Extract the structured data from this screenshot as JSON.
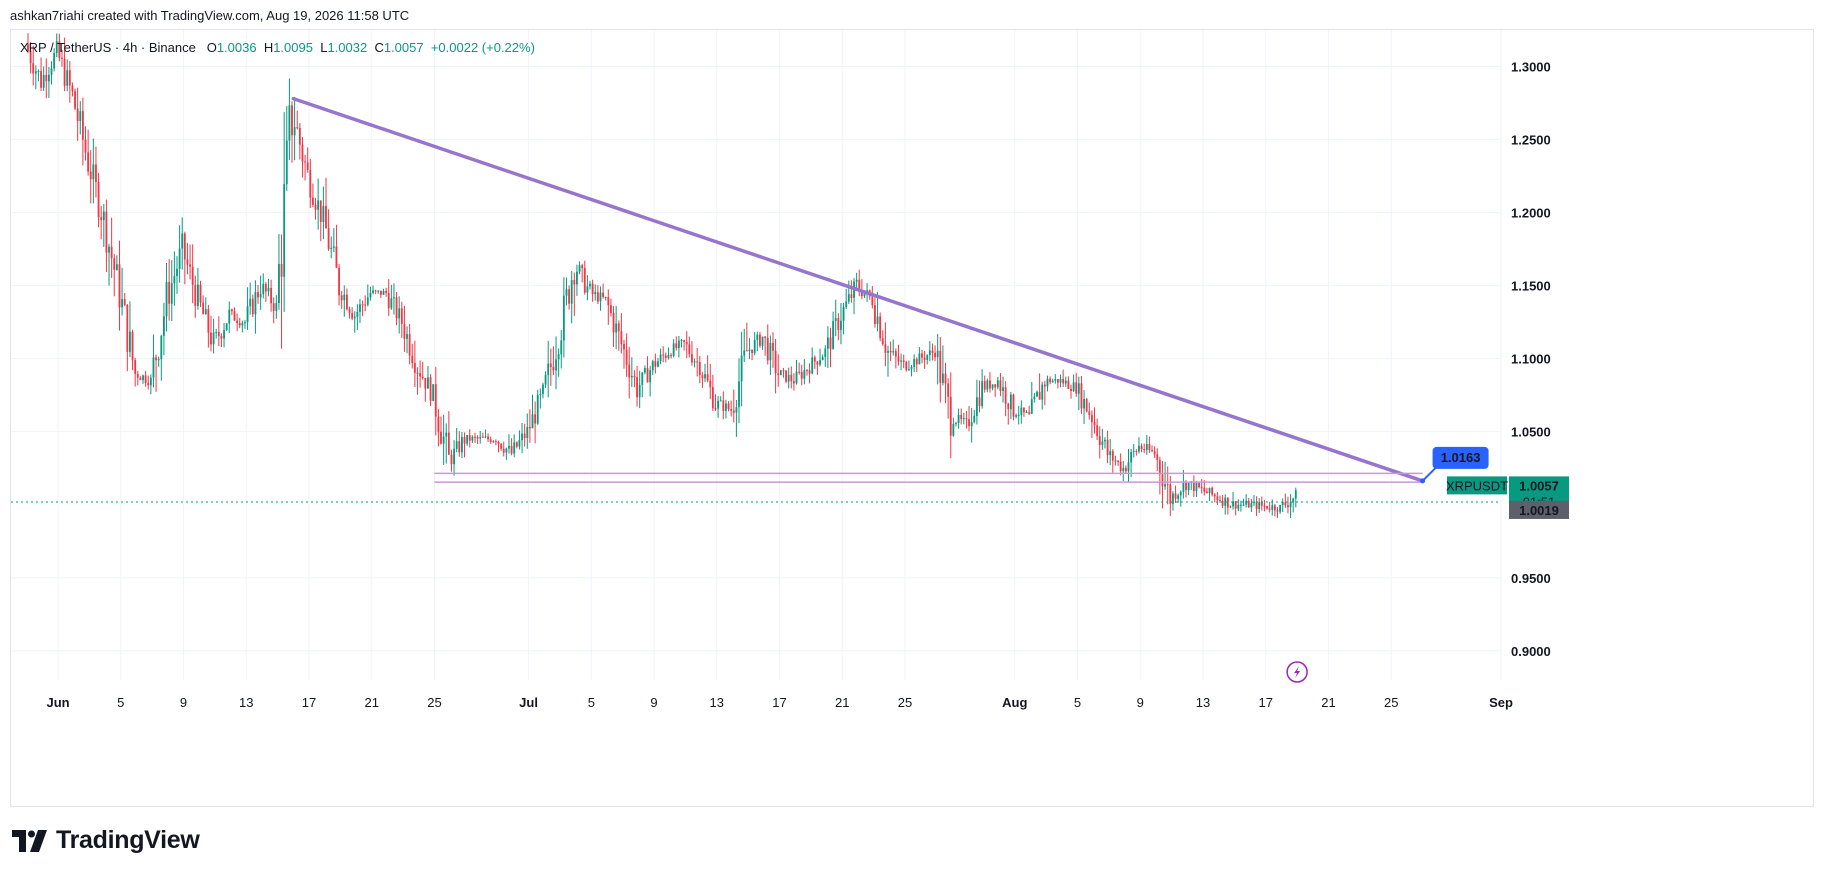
{
  "header": {
    "text": "ashkan7riahi created with TradingView.com, Aug 19, 2026 11:58 UTC"
  },
  "symbol_bar": {
    "symbol": "XRP / TetherUS · 4h · Binance",
    "o_label": "O",
    "o_value": "1.0036",
    "h_label": "H",
    "h_value": "1.0095",
    "l_label": "L",
    "l_value": "1.0032",
    "c_label": "C",
    "c_value": "1.0057",
    "change": "+0.0022 (+0.22%)"
  },
  "price_axis": {
    "ticks": [
      "1.3000",
      "1.2500",
      "1.2000",
      "1.1500",
      "1.1000",
      "1.0500",
      "0.9500",
      "0.9000"
    ],
    "last_price_symbol": "XRPUSDT",
    "last_price": "1.0057",
    "countdown": "01:51",
    "line_price": "1.0019"
  },
  "time_axis": {
    "labels": [
      "Jun",
      "5",
      "9",
      "13",
      "17",
      "21",
      "25",
      "Jul",
      "5",
      "9",
      "13",
      "17",
      "21",
      "25",
      "Aug",
      "5",
      "9",
      "13",
      "17",
      "21",
      "25",
      "Sep"
    ]
  },
  "drawings": {
    "trendline_label": "1.0163",
    "trendline_color": "#9575cd",
    "support_color": "#ce93d8"
  },
  "colors": {
    "up": "#089981",
    "down": "#f23645",
    "grid": "#f0f3fa",
    "text": "#131722",
    "dotted_line": "#089981"
  },
  "footer": {
    "brand": "TradingView",
    "logo_icon": "tradingview-logo-icon"
  },
  "chart_data": {
    "type": "candlestick",
    "title": "XRP / TetherUS · 4h · Binance",
    "xlabel": "",
    "ylabel": "",
    "x_range": [
      "2026-05-29",
      "2026-09-01"
    ],
    "ylim": [
      0.88,
      1.325
    ],
    "grid": true,
    "price_series": {
      "name": "XRPUSDT",
      "points": [
        [
          "2026-05-30",
          1.315
        ],
        [
          "2026-05-31",
          1.29
        ],
        [
          "2026-06-01",
          1.31
        ],
        [
          "2026-06-02",
          1.28
        ],
        [
          "2026-06-03",
          1.235
        ],
        [
          "2026-06-04",
          1.195
        ],
        [
          "2026-06-05",
          1.145
        ],
        [
          "2026-06-06",
          1.09
        ],
        [
          "2026-06-07",
          1.085
        ],
        [
          "2026-06-08",
          1.14
        ],
        [
          "2026-06-09",
          1.175
        ],
        [
          "2026-06-10",
          1.14
        ],
        [
          "2026-06-11",
          1.11
        ],
        [
          "2026-06-12",
          1.13
        ],
        [
          "2026-06-13",
          1.125
        ],
        [
          "2026-06-14",
          1.15
        ],
        [
          "2026-06-15",
          1.135
        ],
        [
          "2026-06-16",
          1.27
        ],
        [
          "2026-06-17",
          1.225
        ],
        [
          "2026-06-18",
          1.195
        ],
        [
          "2026-06-19",
          1.15
        ],
        [
          "2026-06-20",
          1.13
        ],
        [
          "2026-06-21",
          1.145
        ],
        [
          "2026-06-22",
          1.145
        ],
        [
          "2026-06-23",
          1.125
        ],
        [
          "2026-06-24",
          1.095
        ],
        [
          "2026-06-25",
          1.075
        ],
        [
          "2026-06-26",
          1.03
        ],
        [
          "2026-06-27",
          1.045
        ],
        [
          "2026-06-28",
          1.045
        ],
        [
          "2026-06-29",
          1.045
        ],
        [
          "2026-06-30",
          1.035
        ],
        [
          "2026-07-01",
          1.05
        ],
        [
          "2026-07-02",
          1.075
        ],
        [
          "2026-07-03",
          1.115
        ],
        [
          "2026-07-04",
          1.165
        ],
        [
          "2026-07-05",
          1.145
        ],
        [
          "2026-07-06",
          1.14
        ],
        [
          "2026-07-07",
          1.11
        ],
        [
          "2026-07-08",
          1.08
        ],
        [
          "2026-07-09",
          1.095
        ],
        [
          "2026-07-10",
          1.105
        ],
        [
          "2026-07-11",
          1.11
        ],
        [
          "2026-07-12",
          1.095
        ],
        [
          "2026-07-13",
          1.07
        ],
        [
          "2026-07-14",
          1.065
        ],
        [
          "2026-07-15",
          1.105
        ],
        [
          "2026-07-16",
          1.115
        ],
        [
          "2026-07-17",
          1.09
        ],
        [
          "2026-07-18",
          1.085
        ],
        [
          "2026-07-19",
          1.095
        ],
        [
          "2026-07-20",
          1.105
        ],
        [
          "2026-07-21",
          1.13
        ],
        [
          "2026-07-22",
          1.15
        ],
        [
          "2026-07-23",
          1.14
        ],
        [
          "2026-07-24",
          1.105
        ],
        [
          "2026-07-25",
          1.095
        ],
        [
          "2026-07-26",
          1.1
        ],
        [
          "2026-07-27",
          1.105
        ],
        [
          "2026-07-28",
          1.06
        ],
        [
          "2026-07-29",
          1.055
        ],
        [
          "2026-07-30",
          1.08
        ],
        [
          "2026-07-31",
          1.085
        ],
        [
          "2026-08-01",
          1.065
        ],
        [
          "2026-08-02",
          1.06
        ],
        [
          "2026-08-03",
          1.085
        ],
        [
          "2026-08-04",
          1.085
        ],
        [
          "2026-08-05",
          1.08
        ],
        [
          "2026-08-06",
          1.06
        ],
        [
          "2026-08-07",
          1.035
        ],
        [
          "2026-08-08",
          1.025
        ],
        [
          "2026-08-09",
          1.04
        ],
        [
          "2026-08-10",
          1.035
        ],
        [
          "2026-08-11",
          1.005
        ],
        [
          "2026-08-12",
          1.015
        ],
        [
          "2026-08-13",
          1.01
        ],
        [
          "2026-08-14",
          1.005
        ],
        [
          "2026-08-15",
          1.0
        ],
        [
          "2026-08-16",
          1.0
        ],
        [
          "2026-08-17",
          0.999
        ],
        [
          "2026-08-18",
          0.998
        ],
        [
          "2026-08-19",
          1.0057
        ]
      ]
    },
    "trendline": {
      "start": [
        "2026-06-16",
        1.278
      ],
      "end": [
        "2026-08-27",
        1.0163
      ],
      "label": "1.0163"
    },
    "support_lines": [
      {
        "start": [
          "2026-06-25",
          1.0215
        ],
        "end": [
          "2026-08-27",
          1.0215
        ]
      },
      {
        "start": [
          "2026-06-25",
          1.0155
        ],
        "end": [
          "2026-08-27",
          1.0155
        ]
      }
    ],
    "price_line": 1.0019
  }
}
